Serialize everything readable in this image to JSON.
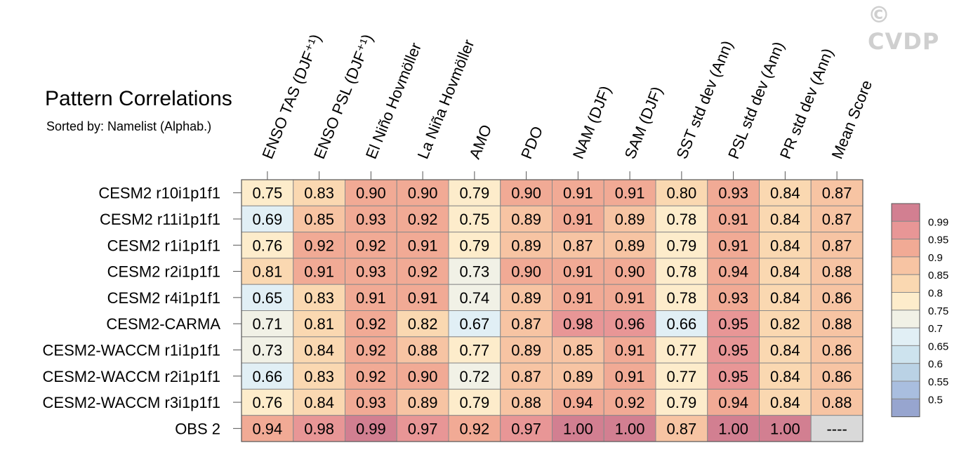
{
  "watermark": "© CVDP",
  "chart_data": {
    "type": "heatmap",
    "title": "Pattern Correlations",
    "subtitle": "Sorted by: Namelist (Alphab.)",
    "columns": [
      "ENSO TAS (DJF⁺¹)",
      "ENSO PSL (DJF⁺¹)",
      "El Niño Hovmöller",
      "La Niña Hovmöller",
      "AMO",
      "PDO",
      "NAM (DJF)",
      "SAM (DJF)",
      "SST std dev (Ann)",
      "PSL std dev (Ann)",
      "PR std dev (Ann)",
      "Mean Score"
    ],
    "rows": [
      "CESM2 r10i1p1f1",
      "CESM2 r11i1p1f1",
      "CESM2 r1i1p1f1",
      "CESM2 r2i1p1f1",
      "CESM2 r4i1p1f1",
      "CESM2-CARMA",
      "CESM2-WACCM r1i1p1f1",
      "CESM2-WACCM r2i1p1f1",
      "CESM2-WACCM r3i1p1f1",
      "OBS 2"
    ],
    "values": [
      [
        "0.75",
        "0.83",
        "0.90",
        "0.90",
        "0.79",
        "0.90",
        "0.91",
        "0.91",
        "0.80",
        "0.93",
        "0.84",
        "0.87"
      ],
      [
        "0.69",
        "0.85",
        "0.93",
        "0.92",
        "0.75",
        "0.89",
        "0.91",
        "0.89",
        "0.78",
        "0.91",
        "0.84",
        "0.87"
      ],
      [
        "0.76",
        "0.92",
        "0.92",
        "0.91",
        "0.79",
        "0.89",
        "0.87",
        "0.89",
        "0.79",
        "0.91",
        "0.84",
        "0.87"
      ],
      [
        "0.81",
        "0.91",
        "0.93",
        "0.92",
        "0.73",
        "0.90",
        "0.91",
        "0.90",
        "0.78",
        "0.94",
        "0.84",
        "0.88"
      ],
      [
        "0.65",
        "0.83",
        "0.91",
        "0.91",
        "0.74",
        "0.89",
        "0.91",
        "0.91",
        "0.78",
        "0.93",
        "0.84",
        "0.86"
      ],
      [
        "0.71",
        "0.81",
        "0.92",
        "0.82",
        "0.67",
        "0.87",
        "0.98",
        "0.96",
        "0.66",
        "0.95",
        "0.82",
        "0.88"
      ],
      [
        "0.73",
        "0.84",
        "0.92",
        "0.88",
        "0.77",
        "0.89",
        "0.85",
        "0.91",
        "0.77",
        "0.95",
        "0.84",
        "0.86"
      ],
      [
        "0.66",
        "0.83",
        "0.92",
        "0.90",
        "0.72",
        "0.87",
        "0.89",
        "0.91",
        "0.77",
        "0.95",
        "0.84",
        "0.86"
      ],
      [
        "0.76",
        "0.84",
        "0.93",
        "0.89",
        "0.79",
        "0.88",
        "0.94",
        "0.92",
        "0.79",
        "0.94",
        "0.84",
        "0.88"
      ],
      [
        "0.94",
        "0.98",
        "0.99",
        "0.97",
        "0.92",
        "0.97",
        "1.00",
        "1.00",
        "0.87",
        "1.00",
        "1.00",
        "----"
      ]
    ],
    "colorbar": {
      "labels": [
        "0.99",
        "0.95",
        "0.9",
        "0.85",
        "0.8",
        "0.75",
        "0.7",
        "0.65",
        "0.6",
        "0.55",
        "0.5"
      ],
      "colors": [
        "#d27f91",
        "#e89696",
        "#f1aa95",
        "#f7c4a3",
        "#fad8b1",
        "#fdeccb",
        "#f1f1e6",
        "#e1eff5",
        "#cde3ee",
        "#bad2e5",
        "#a9bedf",
        "#97a5cf"
      ]
    },
    "missing_color": "#d9d9d9"
  }
}
